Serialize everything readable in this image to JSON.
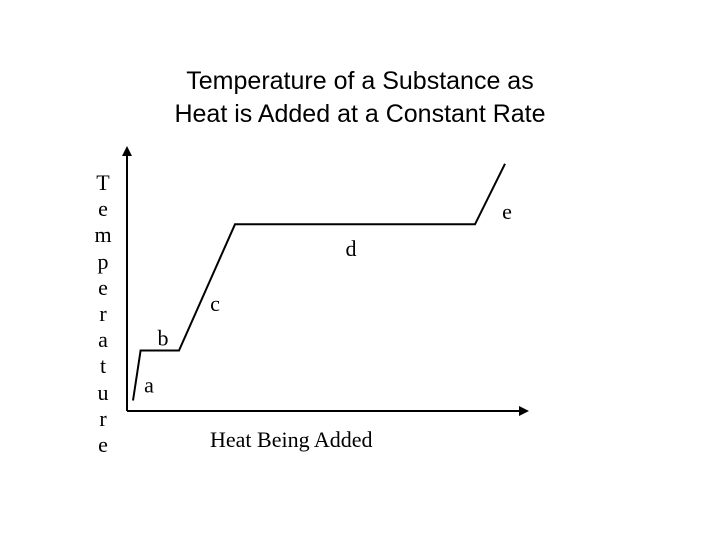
{
  "chart_data": {
    "type": "line",
    "title": [
      "Temperature of a Substance as",
      "Heat is Added at a Constant Rate"
    ],
    "xlabel": "Heat Being Added",
    "ylabel": "Temperature",
    "axis_color": "#000000",
    "line_color": "#000000",
    "xlim": [
      0,
      100
    ],
    "ylim": [
      0,
      100
    ],
    "grid": false,
    "legend": "none",
    "series": [
      {
        "points": [
          {
            "x": 1.5,
            "y": 4
          },
          {
            "x": 3.4,
            "y": 23
          },
          {
            "x": 13,
            "y": 23
          },
          {
            "x": 27,
            "y": 71
          },
          {
            "x": 87,
            "y": 71
          },
          {
            "x": 94.5,
            "y": 94
          }
        ]
      }
    ],
    "annotations": [
      {
        "text": "a",
        "x": 5.5,
        "y": 7
      },
      {
        "text": "b",
        "x": 9,
        "y": 25
      },
      {
        "text": "c",
        "x": 22,
        "y": 38
      },
      {
        "text": "d",
        "x": 56,
        "y": 59
      },
      {
        "text": "e",
        "x": 95,
        "y": 73
      }
    ]
  }
}
